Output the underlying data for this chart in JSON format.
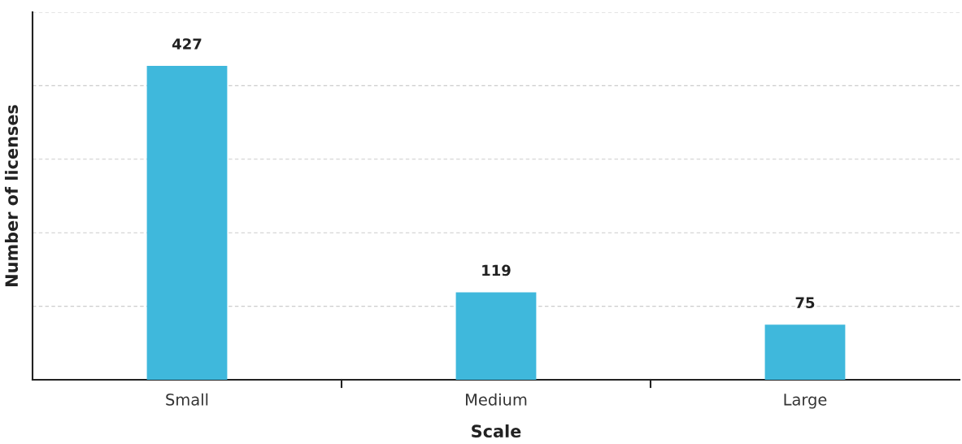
{
  "chart_data": {
    "type": "bar",
    "xlabel": "Scale",
    "ylabel": "Number of licenses",
    "categories": [
      "Small",
      "Medium",
      "Large"
    ],
    "values": [
      427,
      119,
      75
    ],
    "color": "#3fb8dc",
    "ylim": [
      0,
      500
    ],
    "yticks": [
      {
        "value": 100,
        "label": null
      },
      {
        "value": 200,
        "label": null
      },
      {
        "value": 300,
        "label": null
      },
      {
        "value": 400,
        "label": null
      },
      {
        "value": 500,
        "label": null
      }
    ],
    "tick_labels": "x",
    "grid": "y",
    "data_labels": true
  }
}
